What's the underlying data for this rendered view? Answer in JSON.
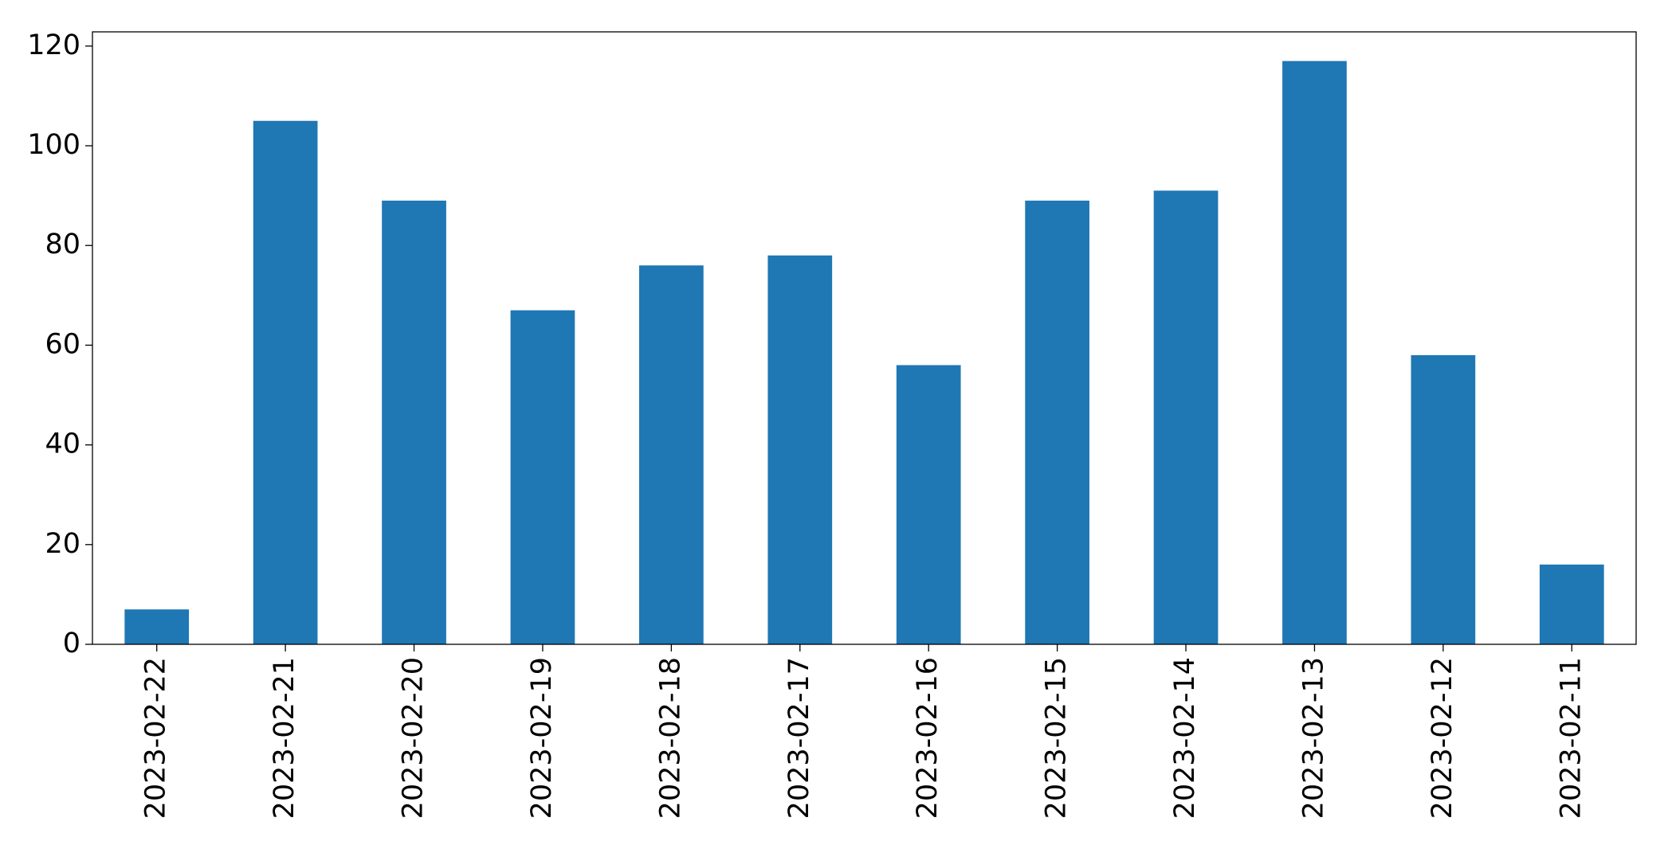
{
  "chart_data": {
    "type": "bar",
    "categories": [
      "2023-02-22",
      "2023-02-21",
      "2023-02-20",
      "2023-02-19",
      "2023-02-18",
      "2023-02-17",
      "2023-02-16",
      "2023-02-15",
      "2023-02-14",
      "2023-02-13",
      "2023-02-12",
      "2023-02-11"
    ],
    "values": [
      7,
      105,
      89,
      67,
      76,
      78,
      56,
      89,
      91,
      117,
      58,
      16
    ],
    "color": "#1f77b4",
    "ylim": [
      0,
      122.85
    ],
    "yticks": [
      0,
      20,
      40,
      60,
      80,
      100,
      120
    ],
    "grid": false
  }
}
